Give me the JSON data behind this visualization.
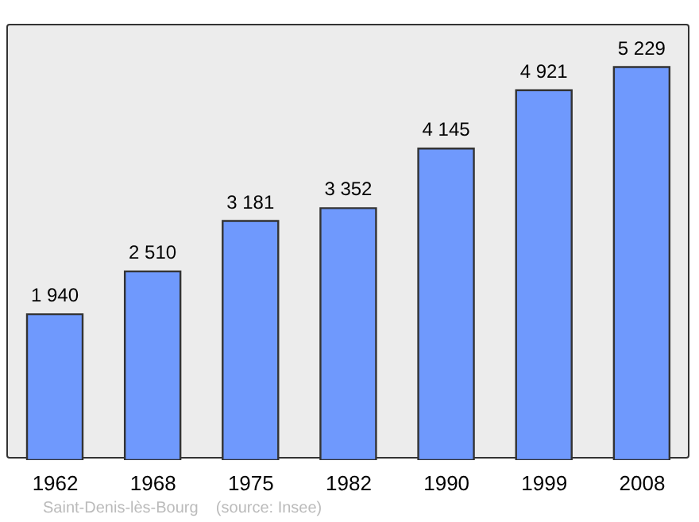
{
  "chart_data": {
    "type": "bar",
    "categories": [
      "1962",
      "1968",
      "1975",
      "1982",
      "1990",
      "1999",
      "2008"
    ],
    "values": [
      1940,
      2510,
      3181,
      3352,
      4145,
      4921,
      5229
    ],
    "value_labels": [
      "1 940",
      "2 510",
      "3 181",
      "3 352",
      "4 145",
      "4 921",
      "5 229"
    ],
    "color": "#6f99fd",
    "annotations": [
      "Saint-Denis-lès-Bourg    (source: Insee)"
    ]
  }
}
